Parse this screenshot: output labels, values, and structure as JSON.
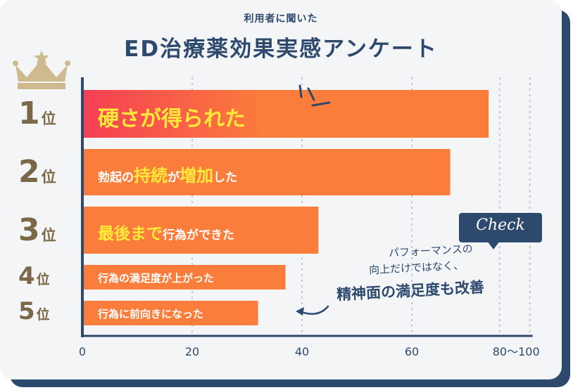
{
  "header": {
    "subtitle": "利用者に聞いた",
    "title": "ED治療薬効果実感アンケート"
  },
  "callout": {
    "check_label": "Check",
    "note_line1": "パフォーマンスの",
    "note_line2": "向上だけではなく、",
    "note_line3": "精神面の満足度も改善"
  },
  "colors": {
    "navy": "#2d4a6e",
    "orange": "#fb7d3c",
    "red": "#f53f54",
    "highlight": "#ffe93a",
    "rank_brown": "#7a6848",
    "crown_gold": "#cfb98e"
  },
  "chart_data": {
    "type": "bar",
    "orientation": "horizontal",
    "categories": [
      "1位",
      "2位",
      "3位",
      "4位",
      "5位"
    ],
    "ranks": [
      {
        "num": "1",
        "suffix": "位"
      },
      {
        "num": "2",
        "suffix": "位"
      },
      {
        "num": "3",
        "suffix": "位"
      },
      {
        "num": "4",
        "suffix": "位"
      },
      {
        "num": "5",
        "suffix": "位"
      }
    ],
    "labels": [
      {
        "parts": [
          {
            "text": "硬さが得られた",
            "hl": true
          }
        ]
      },
      {
        "parts": [
          {
            "text": "勃起の",
            "hl": false
          },
          {
            "text": "持続",
            "hl": true
          },
          {
            "text": "が",
            "hl": false
          },
          {
            "text": "増加",
            "hl": true
          },
          {
            "text": "した",
            "hl": false
          }
        ]
      },
      {
        "parts": [
          {
            "text": "最後まで",
            "hl": true
          },
          {
            "text": "行為ができた",
            "hl": false
          }
        ]
      },
      {
        "parts": [
          {
            "text": "行為の満足度が上がった",
            "hl": false
          }
        ]
      },
      {
        "parts": [
          {
            "text": "行為に前向きになった",
            "hl": false
          }
        ]
      }
    ],
    "values": [
      74,
      67,
      43,
      37,
      32
    ],
    "xticks": [
      "0",
      "20",
      "40",
      "60",
      "80〜100"
    ],
    "xlim": [
      0,
      80
    ],
    "grid": true,
    "xlabel": "",
    "ylabel": ""
  }
}
